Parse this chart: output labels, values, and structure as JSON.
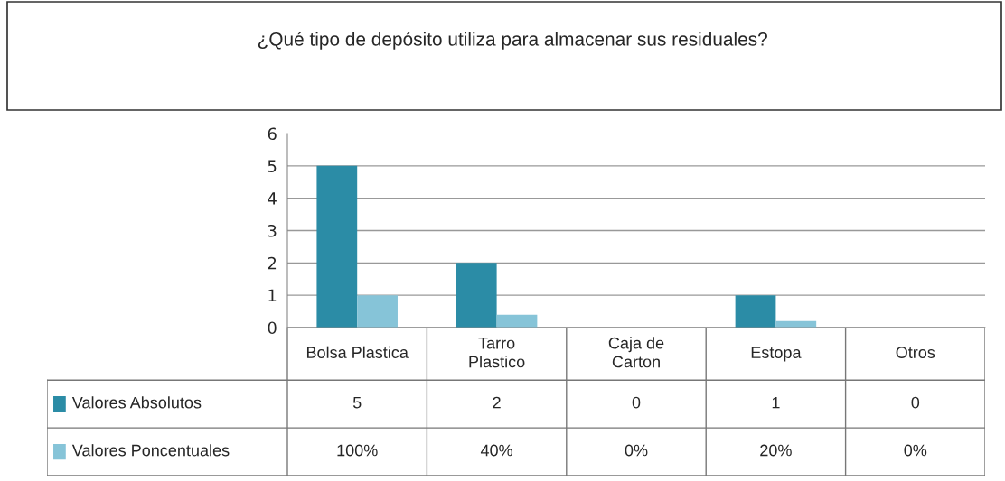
{
  "chart_data": {
    "type": "bar",
    "title": "¿Qué tipo de depósito utiliza para almacenar sus residuales?",
    "categories": [
      "Bolsa Plastica",
      "Tarro\nPlastico",
      "Caja de\nCarton",
      "Estopa",
      "Otros"
    ],
    "series": [
      {
        "name": "Valores Absolutos",
        "color": "#2b8ca6",
        "values": [
          5,
          2,
          0,
          1,
          0
        ],
        "value_labels": [
          "5",
          "2",
          "0",
          "1",
          "0"
        ]
      },
      {
        "name": "Valores Poncentuales",
        "color": "#86c4d8",
        "values": [
          1,
          0.4,
          0,
          0.2,
          0
        ],
        "value_labels": [
          "100%",
          "40%",
          "0%",
          "20%",
          "0%"
        ]
      }
    ],
    "ylim": [
      0,
      6
    ],
    "yticks": [
      0,
      1,
      2,
      3,
      4,
      5,
      6
    ],
    "grid": "y",
    "legend": "bottom"
  }
}
